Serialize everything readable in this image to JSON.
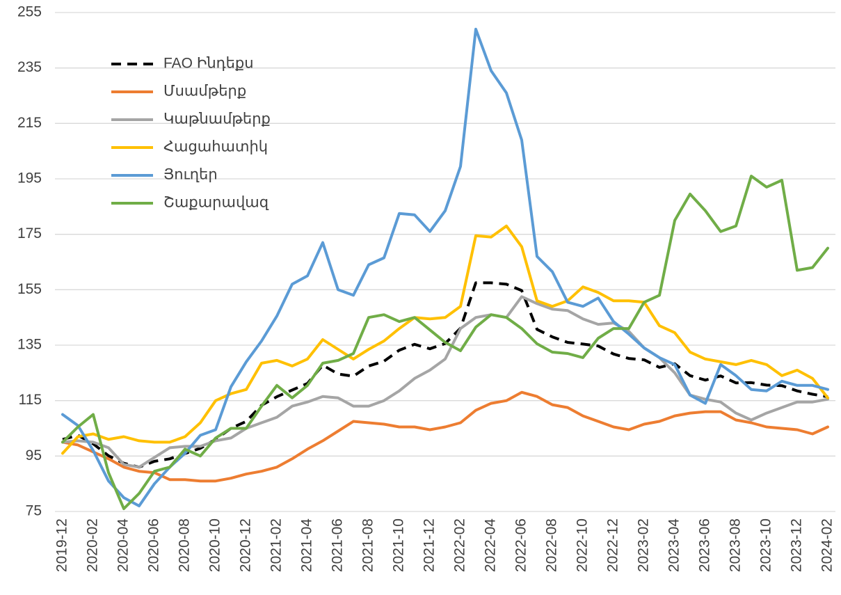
{
  "chart_data": {
    "type": "line",
    "categories": [
      "2019-12",
      null,
      "2020-02",
      null,
      "2020-04",
      null,
      "2020-06",
      null,
      "2020-08",
      null,
      "2020-10",
      null,
      "2020-12",
      null,
      "2021-02",
      null,
      "2021-04",
      null,
      "2021-06",
      null,
      "2021-08",
      null,
      "2021-10",
      null,
      "2021-12",
      null,
      "2022-02",
      null,
      "2022-04",
      null,
      "2022-06",
      null,
      "2022-08",
      null,
      "2022-10",
      null,
      "2022-12",
      null,
      "2023-02",
      null,
      "2023-04",
      null,
      "2023-06",
      null,
      "2023-08",
      null,
      "2023-10",
      null,
      "2023-12",
      null,
      "2024-02"
    ],
    "series": [
      {
        "name": "FAO Ինդեքս",
        "color": "#000000",
        "dash": "dashed",
        "values": [
          101,
          102.5,
          99.4,
          95.1,
          92.4,
          91,
          93.1,
          94,
          95.9,
          97.8,
          101,
          105,
          107.5,
          113.3,
          116.4,
          118.8,
          121.2,
          127.8,
          124.6,
          123.8,
          127.5,
          129.2,
          133.2,
          135.3,
          133.7,
          135.6,
          141.1,
          157.5,
          157.5,
          157,
          154.7,
          140.7,
          138,
          136,
          135.4,
          134.7,
          131.8,
          130.2,
          129.7,
          127,
          128.3,
          124,
          122.4,
          123.9,
          121.4,
          121.5,
          120.6,
          120.4,
          118.5,
          117.3,
          116.4
        ]
      },
      {
        "name": "Մսամթերք",
        "color": "#ed7d31",
        "values": [
          100,
          99,
          96.5,
          94,
          91,
          89.5,
          89,
          86.5,
          86.5,
          86,
          86,
          87,
          88.5,
          89.5,
          91,
          94,
          97.5,
          100.5,
          104,
          107.5,
          107,
          106.5,
          105.5,
          105.5,
          104.5,
          105.5,
          107,
          111.5,
          114,
          115,
          118,
          116.5,
          113.5,
          112.5,
          109.5,
          107.5,
          105.5,
          104.5,
          106.5,
          107.5,
          109.5,
          110.5,
          111,
          111,
          108,
          107,
          105.5,
          105,
          104.5,
          103,
          105.5
        ]
      },
      {
        "name": "Կաթնամթերք",
        "color": "#a5a5a5",
        "values": [
          100,
          100.5,
          100,
          98,
          92,
          91,
          94.5,
          98,
          98.5,
          98.5,
          100.5,
          101.5,
          105,
          107,
          109,
          113,
          114.5,
          116.5,
          116,
          113,
          113,
          115,
          118.5,
          123,
          126,
          130,
          141,
          145,
          146,
          145,
          152.5,
          150,
          148,
          147.5,
          144.5,
          142.5,
          143,
          140,
          134,
          130.5,
          125,
          117,
          115.5,
          114.5,
          110.5,
          108,
          110.5,
          112.5,
          114.5,
          114.5,
          115.5
        ]
      },
      {
        "name": "Հացահատիկ",
        "color": "#ffc000",
        "values": [
          96,
          102,
          103,
          101,
          102,
          100.5,
          100,
          100,
          102,
          107,
          115,
          117.5,
          119,
          128.5,
          129.5,
          127.5,
          130,
          137,
          133.5,
          130,
          133.5,
          136.5,
          141,
          145,
          144.5,
          145,
          149,
          174.5,
          174,
          178,
          170.5,
          151,
          149,
          151,
          156,
          154,
          151,
          151,
          150.5,
          142,
          139.5,
          132.5,
          130,
          129,
          128,
          129.5,
          128,
          124,
          126,
          123,
          116
        ]
      },
      {
        "name": "Յուղեր",
        "color": "#5b9bd5",
        "values": [
          110,
          106,
          97,
          86,
          80,
          77,
          85,
          91,
          96,
          102.5,
          104.5,
          120,
          129,
          136.5,
          145.5,
          157,
          160,
          172,
          155,
          153,
          164,
          166.5,
          182.5,
          182,
          176,
          183.5,
          199.5,
          249,
          234,
          226,
          209,
          167,
          161.5,
          150.5,
          149,
          152,
          143.5,
          139,
          134,
          130.5,
          128,
          117,
          114,
          128,
          124,
          119,
          118.5,
          122,
          120.5,
          120.5,
          119
        ]
      },
      {
        "name": "Շաքարավազ",
        "color": "#70ad47",
        "values": [
          100,
          105.5,
          110,
          89,
          76,
          81.5,
          89.5,
          91,
          97.5,
          95,
          101.5,
          105,
          105,
          113,
          120.5,
          116,
          120.5,
          128.5,
          129.5,
          132,
          145,
          146,
          143.5,
          145,
          140.5,
          136,
          133,
          141.5,
          146,
          145,
          141,
          135.5,
          132.5,
          132,
          130.5,
          137.5,
          141,
          141,
          150.5,
          153,
          180,
          189.5,
          183.5,
          176,
          178,
          196,
          192,
          194.5,
          162,
          163,
          170
        ]
      }
    ],
    "ylim": [
      75,
      255
    ],
    "yticks": [
      75,
      95,
      115,
      135,
      155,
      175,
      195,
      215,
      235,
      255
    ],
    "grid": true,
    "legend": "upper left"
  }
}
